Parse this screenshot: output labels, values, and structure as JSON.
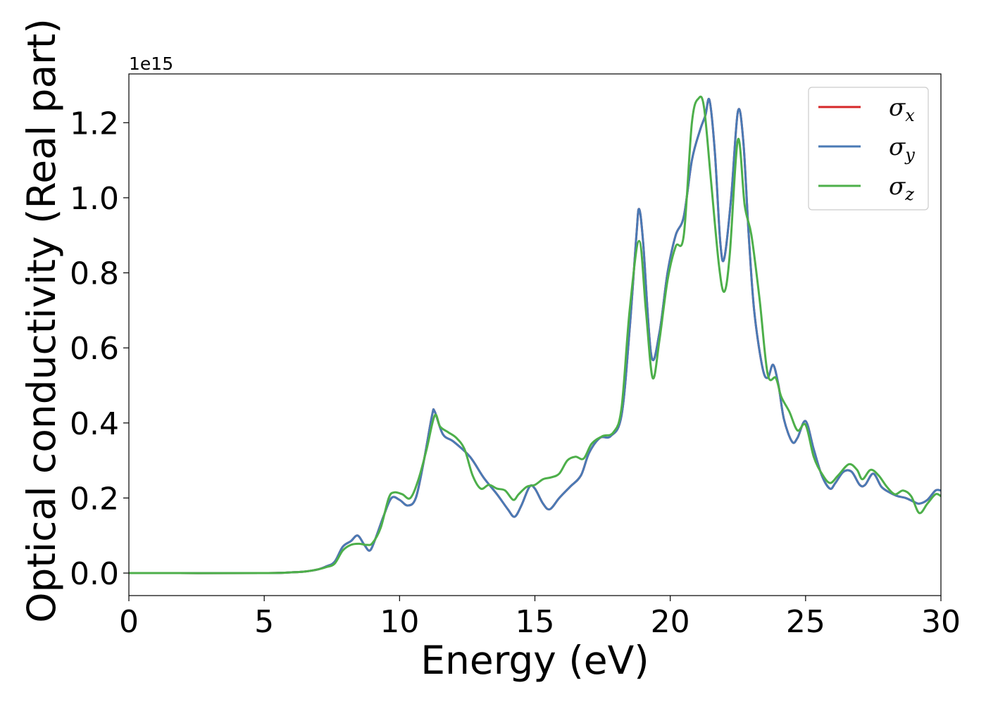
{
  "chart_data": {
    "type": "line",
    "xlabel": "Energy (eV)",
    "ylabel": "Optical conductivity (Real part)",
    "y_offset_label": "1e15",
    "xlim": [
      0,
      30
    ],
    "ylim": [
      -0.06,
      1.33
    ],
    "x_ticks": [
      0,
      5,
      10,
      15,
      20,
      25,
      30
    ],
    "x_tick_labels": [
      "0",
      "5",
      "10",
      "15",
      "20",
      "25",
      "30"
    ],
    "y_ticks": [
      0.0,
      0.2,
      0.4,
      0.6,
      0.8,
      1.0,
      1.2
    ],
    "y_tick_labels": [
      "0.0",
      "0.2",
      "0.4",
      "0.6",
      "0.8",
      "1.0",
      "1.2"
    ],
    "grid": false,
    "legend_position": "top-right",
    "series": [
      {
        "name": "σx",
        "legend_symbol": "σ",
        "legend_subscript": "x",
        "color": "#d62728",
        "points": [
          [
            0,
            0
          ],
          [
            5,
            0
          ],
          [
            6,
            0.002
          ],
          [
            6.5,
            0.004
          ],
          [
            7,
            0.01
          ],
          [
            7.3,
            0.018
          ],
          [
            7.6,
            0.03
          ],
          [
            7.9,
            0.07
          ],
          [
            8.2,
            0.085
          ],
          [
            8.45,
            0.1
          ],
          [
            8.7,
            0.075
          ],
          [
            8.9,
            0.06
          ],
          [
            9.1,
            0.09
          ],
          [
            9.4,
            0.15
          ],
          [
            9.7,
            0.2
          ],
          [
            10.0,
            0.195
          ],
          [
            10.3,
            0.18
          ],
          [
            10.6,
            0.2
          ],
          [
            10.9,
            0.3
          ],
          [
            11.2,
            0.42
          ],
          [
            11.3,
            0.43
          ],
          [
            11.6,
            0.37
          ],
          [
            12.0,
            0.35
          ],
          [
            12.6,
            0.31
          ],
          [
            13.1,
            0.255
          ],
          [
            13.6,
            0.21
          ],
          [
            14.0,
            0.17
          ],
          [
            14.25,
            0.15
          ],
          [
            14.5,
            0.18
          ],
          [
            14.8,
            0.23
          ],
          [
            15.0,
            0.225
          ],
          [
            15.3,
            0.185
          ],
          [
            15.55,
            0.17
          ],
          [
            15.9,
            0.2
          ],
          [
            16.3,
            0.23
          ],
          [
            16.7,
            0.26
          ],
          [
            17.0,
            0.32
          ],
          [
            17.4,
            0.36
          ],
          [
            17.8,
            0.365
          ],
          [
            18.2,
            0.42
          ],
          [
            18.5,
            0.65
          ],
          [
            18.75,
            0.9
          ],
          [
            18.85,
            0.97
          ],
          [
            19.0,
            0.88
          ],
          [
            19.3,
            0.58
          ],
          [
            19.6,
            0.64
          ],
          [
            19.9,
            0.8
          ],
          [
            20.2,
            0.9
          ],
          [
            20.5,
            0.95
          ],
          [
            20.8,
            1.1
          ],
          [
            21.1,
            1.18
          ],
          [
            21.3,
            1.22
          ],
          [
            21.45,
            1.26
          ],
          [
            21.65,
            1.12
          ],
          [
            21.85,
            0.88
          ],
          [
            22.0,
            0.84
          ],
          [
            22.25,
            1.0
          ],
          [
            22.5,
            1.23
          ],
          [
            22.7,
            1.15
          ],
          [
            22.9,
            0.9
          ],
          [
            23.1,
            0.7
          ],
          [
            23.4,
            0.55
          ],
          [
            23.6,
            0.52
          ],
          [
            23.8,
            0.555
          ],
          [
            24.0,
            0.5
          ],
          [
            24.2,
            0.41
          ],
          [
            24.5,
            0.35
          ],
          [
            24.7,
            0.36
          ],
          [
            25.0,
            0.405
          ],
          [
            25.3,
            0.33
          ],
          [
            25.6,
            0.26
          ],
          [
            25.9,
            0.225
          ],
          [
            26.1,
            0.24
          ],
          [
            26.4,
            0.27
          ],
          [
            26.7,
            0.27
          ],
          [
            27.0,
            0.235
          ],
          [
            27.2,
            0.235
          ],
          [
            27.5,
            0.265
          ],
          [
            27.8,
            0.23
          ],
          [
            28.1,
            0.215
          ],
          [
            28.4,
            0.205
          ],
          [
            28.7,
            0.2
          ],
          [
            29.0,
            0.19
          ],
          [
            29.2,
            0.185
          ],
          [
            29.5,
            0.195
          ],
          [
            29.8,
            0.22
          ],
          [
            30.0,
            0.22
          ]
        ]
      },
      {
        "name": "σy",
        "legend_symbol": "σ",
        "legend_subscript": "y",
        "color": "#4a7ab5",
        "points": [
          [
            0,
            0
          ],
          [
            5,
            0
          ],
          [
            6,
            0.002
          ],
          [
            6.5,
            0.004
          ],
          [
            7,
            0.01
          ],
          [
            7.3,
            0.018
          ],
          [
            7.6,
            0.03
          ],
          [
            7.9,
            0.07
          ],
          [
            8.2,
            0.085
          ],
          [
            8.45,
            0.1
          ],
          [
            8.7,
            0.075
          ],
          [
            8.9,
            0.06
          ],
          [
            9.1,
            0.09
          ],
          [
            9.4,
            0.15
          ],
          [
            9.7,
            0.2
          ],
          [
            10.0,
            0.195
          ],
          [
            10.3,
            0.18
          ],
          [
            10.6,
            0.2
          ],
          [
            10.9,
            0.3
          ],
          [
            11.2,
            0.42
          ],
          [
            11.3,
            0.43
          ],
          [
            11.6,
            0.37
          ],
          [
            12.0,
            0.35
          ],
          [
            12.6,
            0.31
          ],
          [
            13.1,
            0.255
          ],
          [
            13.6,
            0.21
          ],
          [
            14.0,
            0.17
          ],
          [
            14.25,
            0.15
          ],
          [
            14.5,
            0.18
          ],
          [
            14.8,
            0.23
          ],
          [
            15.0,
            0.225
          ],
          [
            15.3,
            0.185
          ],
          [
            15.55,
            0.17
          ],
          [
            15.9,
            0.2
          ],
          [
            16.3,
            0.23
          ],
          [
            16.7,
            0.26
          ],
          [
            17.0,
            0.32
          ],
          [
            17.4,
            0.36
          ],
          [
            17.8,
            0.365
          ],
          [
            18.2,
            0.42
          ],
          [
            18.5,
            0.65
          ],
          [
            18.75,
            0.9
          ],
          [
            18.85,
            0.97
          ],
          [
            19.0,
            0.88
          ],
          [
            19.3,
            0.58
          ],
          [
            19.6,
            0.64
          ],
          [
            19.9,
            0.8
          ],
          [
            20.2,
            0.9
          ],
          [
            20.5,
            0.95
          ],
          [
            20.8,
            1.1
          ],
          [
            21.1,
            1.18
          ],
          [
            21.3,
            1.22
          ],
          [
            21.45,
            1.26
          ],
          [
            21.65,
            1.12
          ],
          [
            21.85,
            0.88
          ],
          [
            22.0,
            0.84
          ],
          [
            22.25,
            1.0
          ],
          [
            22.5,
            1.23
          ],
          [
            22.7,
            1.15
          ],
          [
            22.9,
            0.9
          ],
          [
            23.1,
            0.7
          ],
          [
            23.4,
            0.55
          ],
          [
            23.6,
            0.52
          ],
          [
            23.8,
            0.555
          ],
          [
            24.0,
            0.5
          ],
          [
            24.2,
            0.41
          ],
          [
            24.5,
            0.35
          ],
          [
            24.7,
            0.36
          ],
          [
            25.0,
            0.405
          ],
          [
            25.3,
            0.33
          ],
          [
            25.6,
            0.26
          ],
          [
            25.9,
            0.225
          ],
          [
            26.1,
            0.24
          ],
          [
            26.4,
            0.27
          ],
          [
            26.7,
            0.27
          ],
          [
            27.0,
            0.235
          ],
          [
            27.2,
            0.235
          ],
          [
            27.5,
            0.265
          ],
          [
            27.8,
            0.23
          ],
          [
            28.1,
            0.215
          ],
          [
            28.4,
            0.205
          ],
          [
            28.7,
            0.2
          ],
          [
            29.0,
            0.19
          ],
          [
            29.2,
            0.185
          ],
          [
            29.5,
            0.195
          ],
          [
            29.8,
            0.22
          ],
          [
            30.0,
            0.22
          ]
        ]
      },
      {
        "name": "σz",
        "legend_symbol": "σ",
        "legend_subscript": "z",
        "color": "#4daf4a",
        "points": [
          [
            0,
            0
          ],
          [
            5,
            0
          ],
          [
            6,
            0.002
          ],
          [
            6.5,
            0.004
          ],
          [
            7,
            0.01
          ],
          [
            7.3,
            0.016
          ],
          [
            7.6,
            0.025
          ],
          [
            7.9,
            0.06
          ],
          [
            8.2,
            0.075
          ],
          [
            8.5,
            0.078
          ],
          [
            8.8,
            0.075
          ],
          [
            9.0,
            0.08
          ],
          [
            9.3,
            0.12
          ],
          [
            9.6,
            0.2
          ],
          [
            9.8,
            0.215
          ],
          [
            10.1,
            0.21
          ],
          [
            10.4,
            0.2
          ],
          [
            10.7,
            0.25
          ],
          [
            11.0,
            0.33
          ],
          [
            11.3,
            0.42
          ],
          [
            11.5,
            0.39
          ],
          [
            11.8,
            0.375
          ],
          [
            12.1,
            0.36
          ],
          [
            12.4,
            0.33
          ],
          [
            12.7,
            0.26
          ],
          [
            13.0,
            0.225
          ],
          [
            13.3,
            0.235
          ],
          [
            13.6,
            0.225
          ],
          [
            13.9,
            0.22
          ],
          [
            14.2,
            0.195
          ],
          [
            14.4,
            0.21
          ],
          [
            14.7,
            0.23
          ],
          [
            15.0,
            0.235
          ],
          [
            15.3,
            0.25
          ],
          [
            15.6,
            0.255
          ],
          [
            15.9,
            0.265
          ],
          [
            16.2,
            0.3
          ],
          [
            16.5,
            0.31
          ],
          [
            16.8,
            0.305
          ],
          [
            17.1,
            0.345
          ],
          [
            17.5,
            0.365
          ],
          [
            17.9,
            0.375
          ],
          [
            18.2,
            0.44
          ],
          [
            18.5,
            0.7
          ],
          [
            18.85,
            0.885
          ],
          [
            19.1,
            0.7
          ],
          [
            19.35,
            0.52
          ],
          [
            19.6,
            0.62
          ],
          [
            19.9,
            0.78
          ],
          [
            20.2,
            0.87
          ],
          [
            20.5,
            0.9
          ],
          [
            20.8,
            1.2
          ],
          [
            21.05,
            1.265
          ],
          [
            21.25,
            1.24
          ],
          [
            21.5,
            1.05
          ],
          [
            21.8,
            0.82
          ],
          [
            22.0,
            0.75
          ],
          [
            22.2,
            0.85
          ],
          [
            22.5,
            1.155
          ],
          [
            22.75,
            0.98
          ],
          [
            23.0,
            0.9
          ],
          [
            23.3,
            0.73
          ],
          [
            23.6,
            0.53
          ],
          [
            23.9,
            0.52
          ],
          [
            24.1,
            0.47
          ],
          [
            24.4,
            0.43
          ],
          [
            24.7,
            0.38
          ],
          [
            25.0,
            0.395
          ],
          [
            25.3,
            0.31
          ],
          [
            25.6,
            0.265
          ],
          [
            25.9,
            0.24
          ],
          [
            26.2,
            0.26
          ],
          [
            26.6,
            0.29
          ],
          [
            26.9,
            0.275
          ],
          [
            27.1,
            0.25
          ],
          [
            27.4,
            0.275
          ],
          [
            27.7,
            0.26
          ],
          [
            28.0,
            0.23
          ],
          [
            28.3,
            0.21
          ],
          [
            28.6,
            0.22
          ],
          [
            28.9,
            0.205
          ],
          [
            29.2,
            0.16
          ],
          [
            29.5,
            0.185
          ],
          [
            29.8,
            0.21
          ],
          [
            30.0,
            0.205
          ]
        ]
      }
    ]
  }
}
